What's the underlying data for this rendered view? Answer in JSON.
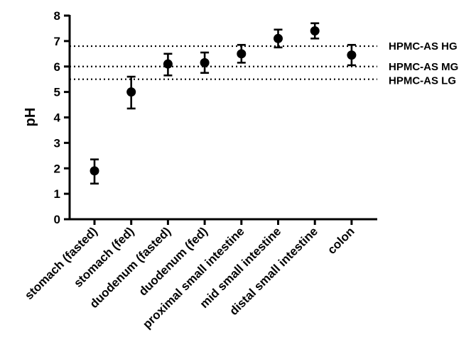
{
  "chart_data": {
    "type": "scatter",
    "title": "",
    "xlabel": "",
    "ylabel": "pH",
    "ylim": [
      0,
      8
    ],
    "yticks": [
      0,
      1,
      2,
      3,
      4,
      5,
      6,
      7,
      8
    ],
    "categories": [
      "stomach (fasted)",
      "stomach (fed)",
      "duodenum (fasted)",
      "duodenum (fed)",
      "proximal small intestine",
      "mid small intestine",
      "distal small intestine",
      "colon"
    ],
    "values": [
      1.9,
      5.0,
      6.1,
      6.15,
      6.5,
      7.1,
      7.4,
      6.45
    ],
    "error_low": [
      1.4,
      4.35,
      5.65,
      5.75,
      6.15,
      6.75,
      7.1,
      6.05
    ],
    "error_high": [
      2.35,
      5.6,
      6.5,
      6.55,
      6.85,
      7.45,
      7.7,
      6.85
    ],
    "reference_lines": [
      {
        "label": "HPMC-AS HG",
        "value": 6.8
      },
      {
        "label": "HPMC-AS MG",
        "value": 6.0
      },
      {
        "label": "HPMC-AS LG",
        "value": 5.5
      }
    ],
    "grid": false,
    "legend": "none"
  }
}
